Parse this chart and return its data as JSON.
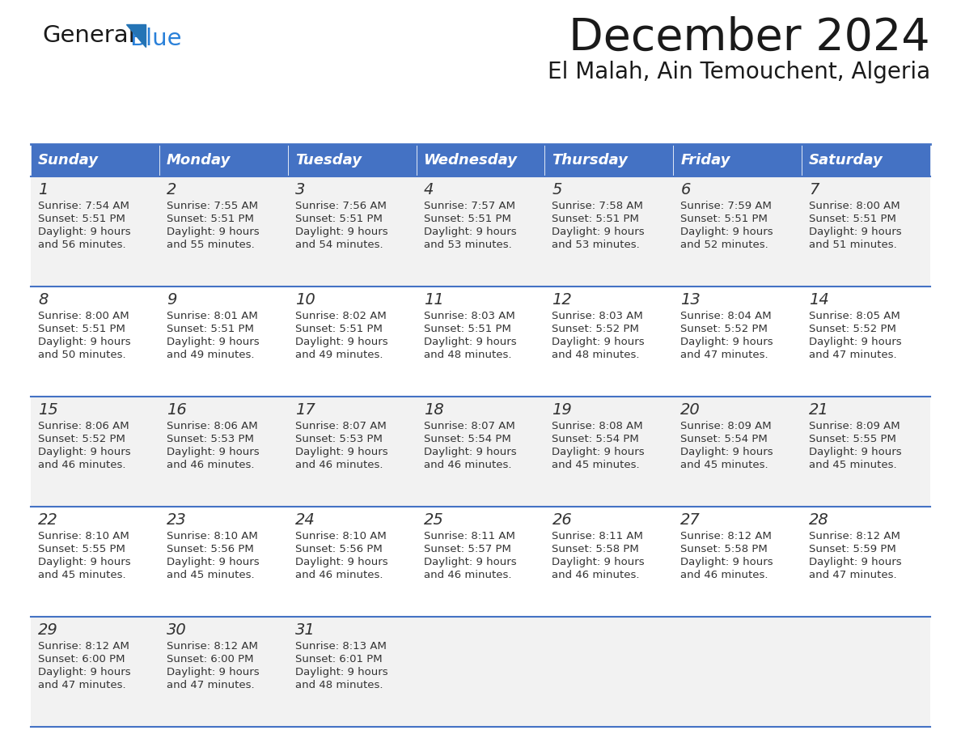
{
  "title": "December 2024",
  "subtitle": "El Malah, Ain Temouchent, Algeria",
  "header_color": "#4472C4",
  "header_text_color": "#FFFFFF",
  "row_colors": [
    "#F2F2F2",
    "#FFFFFF"
  ],
  "line_color": "#4472C4",
  "text_color": "#333333",
  "days_of_week": [
    "Sunday",
    "Monday",
    "Tuesday",
    "Wednesday",
    "Thursday",
    "Friday",
    "Saturday"
  ],
  "weeks": [
    [
      {
        "day": 1,
        "sunrise": "7:54 AM",
        "sunset": "5:51 PM",
        "daylight_hours": 9,
        "daylight_minutes": 56
      },
      {
        "day": 2,
        "sunrise": "7:55 AM",
        "sunset": "5:51 PM",
        "daylight_hours": 9,
        "daylight_minutes": 55
      },
      {
        "day": 3,
        "sunrise": "7:56 AM",
        "sunset": "5:51 PM",
        "daylight_hours": 9,
        "daylight_minutes": 54
      },
      {
        "day": 4,
        "sunrise": "7:57 AM",
        "sunset": "5:51 PM",
        "daylight_hours": 9,
        "daylight_minutes": 53
      },
      {
        "day": 5,
        "sunrise": "7:58 AM",
        "sunset": "5:51 PM",
        "daylight_hours": 9,
        "daylight_minutes": 53
      },
      {
        "day": 6,
        "sunrise": "7:59 AM",
        "sunset": "5:51 PM",
        "daylight_hours": 9,
        "daylight_minutes": 52
      },
      {
        "day": 7,
        "sunrise": "8:00 AM",
        "sunset": "5:51 PM",
        "daylight_hours": 9,
        "daylight_minutes": 51
      }
    ],
    [
      {
        "day": 8,
        "sunrise": "8:00 AM",
        "sunset": "5:51 PM",
        "daylight_hours": 9,
        "daylight_minutes": 50
      },
      {
        "day": 9,
        "sunrise": "8:01 AM",
        "sunset": "5:51 PM",
        "daylight_hours": 9,
        "daylight_minutes": 49
      },
      {
        "day": 10,
        "sunrise": "8:02 AM",
        "sunset": "5:51 PM",
        "daylight_hours": 9,
        "daylight_minutes": 49
      },
      {
        "day": 11,
        "sunrise": "8:03 AM",
        "sunset": "5:51 PM",
        "daylight_hours": 9,
        "daylight_minutes": 48
      },
      {
        "day": 12,
        "sunrise": "8:03 AM",
        "sunset": "5:52 PM",
        "daylight_hours": 9,
        "daylight_minutes": 48
      },
      {
        "day": 13,
        "sunrise": "8:04 AM",
        "sunset": "5:52 PM",
        "daylight_hours": 9,
        "daylight_minutes": 47
      },
      {
        "day": 14,
        "sunrise": "8:05 AM",
        "sunset": "5:52 PM",
        "daylight_hours": 9,
        "daylight_minutes": 47
      }
    ],
    [
      {
        "day": 15,
        "sunrise": "8:06 AM",
        "sunset": "5:52 PM",
        "daylight_hours": 9,
        "daylight_minutes": 46
      },
      {
        "day": 16,
        "sunrise": "8:06 AM",
        "sunset": "5:53 PM",
        "daylight_hours": 9,
        "daylight_minutes": 46
      },
      {
        "day": 17,
        "sunrise": "8:07 AM",
        "sunset": "5:53 PM",
        "daylight_hours": 9,
        "daylight_minutes": 46
      },
      {
        "day": 18,
        "sunrise": "8:07 AM",
        "sunset": "5:54 PM",
        "daylight_hours": 9,
        "daylight_minutes": 46
      },
      {
        "day": 19,
        "sunrise": "8:08 AM",
        "sunset": "5:54 PM",
        "daylight_hours": 9,
        "daylight_minutes": 45
      },
      {
        "day": 20,
        "sunrise": "8:09 AM",
        "sunset": "5:54 PM",
        "daylight_hours": 9,
        "daylight_minutes": 45
      },
      {
        "day": 21,
        "sunrise": "8:09 AM",
        "sunset": "5:55 PM",
        "daylight_hours": 9,
        "daylight_minutes": 45
      }
    ],
    [
      {
        "day": 22,
        "sunrise": "8:10 AM",
        "sunset": "5:55 PM",
        "daylight_hours": 9,
        "daylight_minutes": 45
      },
      {
        "day": 23,
        "sunrise": "8:10 AM",
        "sunset": "5:56 PM",
        "daylight_hours": 9,
        "daylight_minutes": 45
      },
      {
        "day": 24,
        "sunrise": "8:10 AM",
        "sunset": "5:56 PM",
        "daylight_hours": 9,
        "daylight_minutes": 46
      },
      {
        "day": 25,
        "sunrise": "8:11 AM",
        "sunset": "5:57 PM",
        "daylight_hours": 9,
        "daylight_minutes": 46
      },
      {
        "day": 26,
        "sunrise": "8:11 AM",
        "sunset": "5:58 PM",
        "daylight_hours": 9,
        "daylight_minutes": 46
      },
      {
        "day": 27,
        "sunrise": "8:12 AM",
        "sunset": "5:58 PM",
        "daylight_hours": 9,
        "daylight_minutes": 46
      },
      {
        "day": 28,
        "sunrise": "8:12 AM",
        "sunset": "5:59 PM",
        "daylight_hours": 9,
        "daylight_minutes": 47
      }
    ],
    [
      {
        "day": 29,
        "sunrise": "8:12 AM",
        "sunset": "6:00 PM",
        "daylight_hours": 9,
        "daylight_minutes": 47
      },
      {
        "day": 30,
        "sunrise": "8:12 AM",
        "sunset": "6:00 PM",
        "daylight_hours": 9,
        "daylight_minutes": 47
      },
      {
        "day": 31,
        "sunrise": "8:13 AM",
        "sunset": "6:01 PM",
        "daylight_hours": 9,
        "daylight_minutes": 48
      },
      null,
      null,
      null,
      null
    ]
  ],
  "logo_general_color": "#1a1a1a",
  "logo_blue_color": "#2980D9",
  "logo_triangle_color": "#2474B5",
  "fig_width": 11.88,
  "fig_height": 9.18,
  "dpi": 100
}
